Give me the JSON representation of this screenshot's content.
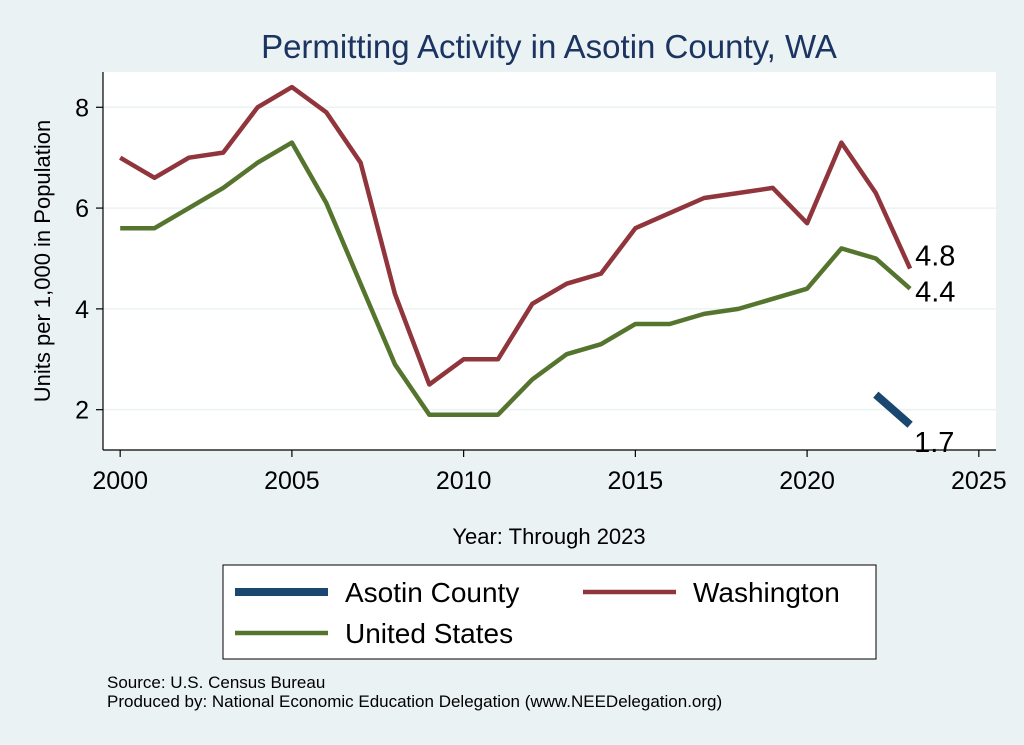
{
  "chart_data": {
    "type": "line",
    "title": "Permitting Activity in Asotin County, WA",
    "xlabel": "Year: Through 2023",
    "ylabel": "Units per 1,000 in Population",
    "xlim": [
      1999.5,
      2025.5
    ],
    "ylim": [
      1.2,
      8.7
    ],
    "x_ticks": [
      "2000",
      "2005",
      "2010",
      "2015",
      "2020",
      "2025"
    ],
    "y_ticks": [
      "2",
      "4",
      "6",
      "8"
    ],
    "grid": true,
    "legend_position": "bottom",
    "series": [
      {
        "name": "Asotin County",
        "color": "#1a476f",
        "x": [
          2022,
          2023
        ],
        "y": [
          2.3,
          1.7
        ],
        "end_label": "1.7"
      },
      {
        "name": "Washington",
        "color": "#90353b",
        "x": [
          2000,
          2001,
          2002,
          2003,
          2004,
          2005,
          2006,
          2007,
          2008,
          2009,
          2010,
          2011,
          2012,
          2013,
          2014,
          2015,
          2016,
          2017,
          2018,
          2019,
          2020,
          2021,
          2022,
          2023
        ],
        "y": [
          7.0,
          6.6,
          7.0,
          7.1,
          8.0,
          8.4,
          7.9,
          6.9,
          4.3,
          2.5,
          3.0,
          3.0,
          4.1,
          4.5,
          4.7,
          5.6,
          5.9,
          6.2,
          6.3,
          6.4,
          5.7,
          7.3,
          6.3,
          4.8
        ],
        "end_label": "4.8"
      },
      {
        "name": "United States",
        "color": "#55752f",
        "x": [
          2000,
          2001,
          2002,
          2003,
          2004,
          2005,
          2006,
          2007,
          2008,
          2009,
          2010,
          2011,
          2012,
          2013,
          2014,
          2015,
          2016,
          2017,
          2018,
          2019,
          2020,
          2021,
          2022,
          2023
        ],
        "y": [
          5.6,
          5.6,
          6.0,
          6.4,
          6.9,
          7.3,
          6.1,
          4.5,
          2.9,
          1.9,
          1.9,
          1.9,
          2.6,
          3.1,
          3.3,
          3.7,
          3.7,
          3.9,
          4.0,
          4.2,
          4.4,
          5.2,
          5.0,
          4.4
        ],
        "end_label": "4.4"
      }
    ]
  },
  "notes": {
    "source": "Source: U.S. Census Bureau",
    "produced_by": "Produced by: National Economic Education Delegation (www.NEEDelegation.org)"
  }
}
